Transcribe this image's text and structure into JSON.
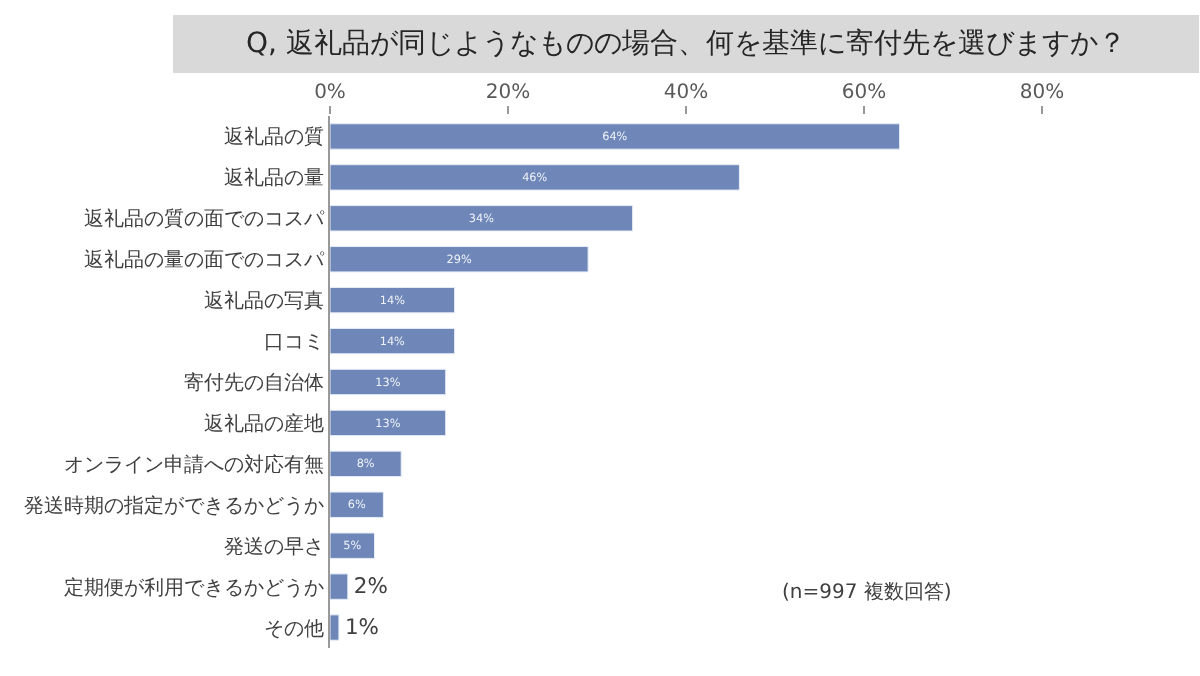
{
  "chart_data": {
    "type": "bar",
    "orientation": "horizontal",
    "title": "Q, 返礼品が同じようなものの場合、何を基準に寄付先を選びますか？",
    "categories": [
      "返礼品の質",
      "返礼品の量",
      "返礼品の質の面でのコスパ",
      "返礼品の量の面でのコスパ",
      "返礼品の写真",
      "口コミ",
      "寄付先の自治体",
      "返礼品の産地",
      "オンライン申請への対応有無",
      "発送時期の指定ができるかどうか",
      "発送の早さ",
      "定期便が利用できるかどうか",
      "その他"
    ],
    "values": [
      64,
      46,
      34,
      29,
      14,
      14,
      13,
      13,
      8,
      6,
      5,
      2,
      1
    ],
    "value_labels": [
      "64%",
      "46%",
      "34%",
      "29%",
      "14%",
      "14%",
      "13%",
      "13%",
      "8%",
      "6%",
      "5%",
      "2%",
      "1%"
    ],
    "color": "#6f87b8",
    "xlim": [
      0,
      80
    ],
    "xticks": [
      {
        "value": 0,
        "label": "0%"
      },
      {
        "value": 20,
        "label": "20%"
      },
      {
        "value": 40,
        "label": "40%"
      },
      {
        "value": 60,
        "label": "60%"
      },
      {
        "value": 80,
        "label": "80%"
      }
    ],
    "annotations": [
      "(n=997 複数回答)"
    ]
  }
}
